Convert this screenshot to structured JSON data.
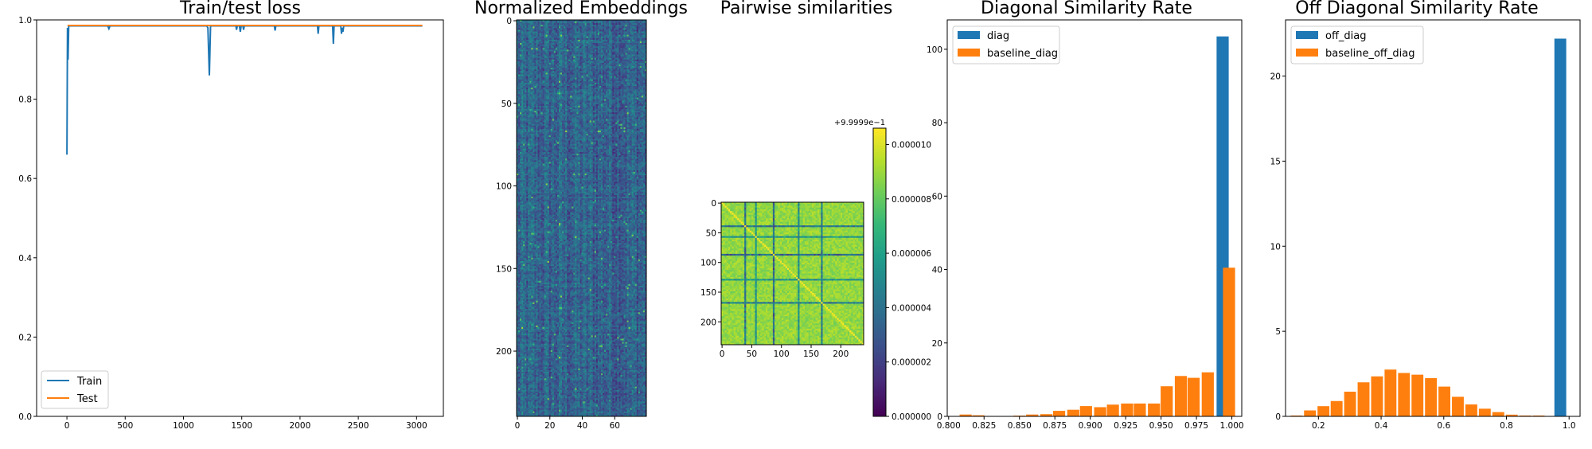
{
  "figure": {
    "titles": [
      "Train/test loss",
      "Normalized Embeddings",
      "Pairwise similarities",
      "Diagonal Similarity Rate",
      "Off Diagonal Similarity Rate"
    ],
    "colorbar_offset": "+9.9999e−1"
  },
  "colors": {
    "blue": "#1f77b4",
    "orange": "#ff7f0e"
  },
  "chart_data": [
    {
      "type": "line",
      "title": "Train/test loss",
      "xlim": [
        -260,
        3230
      ],
      "ylim": [
        0,
        1.0
      ],
      "xticks": [
        0,
        500,
        1000,
        1500,
        2000,
        2500,
        3000
      ],
      "yticks": [
        0.0,
        0.2,
        0.4,
        0.6,
        0.8,
        1.0
      ],
      "ytick_labels": [
        "0.0",
        "0.2",
        "0.4",
        "0.6",
        "0.8",
        "1.0"
      ],
      "legend": "lower-left",
      "series": [
        {
          "name": "Train",
          "color": "#1f77b4",
          "points": [
            [
              0,
              0.66
            ],
            [
              5,
              0.98
            ],
            [
              10,
              0.9
            ],
            [
              15,
              0.985
            ],
            [
              30,
              0.985
            ],
            [
              350,
              0.985
            ],
            [
              360,
              0.978
            ],
            [
              370,
              0.985
            ],
            [
              1200,
              0.985
            ],
            [
              1210,
              0.98
            ],
            [
              1222,
              0.86
            ],
            [
              1232,
              0.985
            ],
            [
              1450,
              0.985
            ],
            [
              1455,
              0.975
            ],
            [
              1462,
              0.985
            ],
            [
              1480,
              0.985
            ],
            [
              1488,
              0.97
            ],
            [
              1495,
              0.985
            ],
            [
              1510,
              0.985
            ],
            [
              1516,
              0.975
            ],
            [
              1522,
              0.985
            ],
            [
              1780,
              0.985
            ],
            [
              1786,
              0.973
            ],
            [
              1792,
              0.985
            ],
            [
              2150,
              0.985
            ],
            [
              2156,
              0.965
            ],
            [
              2162,
              0.985
            ],
            [
              2280,
              0.985
            ],
            [
              2286,
              0.94
            ],
            [
              2292,
              0.985
            ],
            [
              2350,
              0.985
            ],
            [
              2356,
              0.965
            ],
            [
              2362,
              0.98
            ],
            [
              2368,
              0.97
            ],
            [
              2375,
              0.985
            ],
            [
              3050,
              0.985
            ]
          ]
        },
        {
          "name": "Test",
          "color": "#ff7f0e",
          "points": [
            [
              5,
              0.986
            ],
            [
              3050,
              0.986
            ]
          ]
        }
      ]
    },
    {
      "type": "heatmap",
      "title": "Normalized Embeddings",
      "rows": 240,
      "cols": 80,
      "colormap": "viridis",
      "xticks": [
        0,
        20,
        40,
        60
      ],
      "yticks": [
        0,
        50,
        100,
        150,
        200
      ]
    },
    {
      "type": "heatmap",
      "title": "Pairwise similarities",
      "rows": 240,
      "cols": 240,
      "colormap": "viridis",
      "xticks": [
        0,
        50,
        100,
        150,
        200
      ],
      "yticks": [
        0,
        50,
        100,
        150,
        200
      ],
      "colorbar": {
        "offset": "+9.9999e−1",
        "ticks": [
          "0.000000",
          "0.000002",
          "0.000004",
          "0.000006",
          "0.000008",
          "0.000010"
        ],
        "range": [
          0,
          1.06e-05
        ]
      }
    },
    {
      "type": "bar",
      "title": "Diagonal Similarity Rate",
      "xlim": [
        0.799,
        1.007
      ],
      "ylim": [
        0,
        108
      ],
      "xticks": [
        0.8,
        0.825,
        0.85,
        0.875,
        0.9,
        0.925,
        0.95,
        0.975,
        1.0
      ],
      "xtick_labels": [
        "0.800",
        "0.825",
        "0.850",
        "0.875",
        "0.900",
        "0.925",
        "0.950",
        "0.975",
        "1.000"
      ],
      "yticks": [
        0,
        20,
        40,
        60,
        80,
        100
      ],
      "legend": "top-left",
      "bin_width": 0.0095,
      "series": [
        {
          "name": "diag",
          "color": "#1f77b4",
          "x": [
            0.9935
          ],
          "values": [
            103.5
          ]
        },
        {
          "name": "baseline_diag",
          "color": "#ff7f0e",
          "x": [
            0.812,
            0.821,
            0.831,
            0.84,
            0.85,
            0.859,
            0.869,
            0.878,
            0.888,
            0.897,
            0.907,
            0.916,
            0.926,
            0.935,
            0.945,
            0.954,
            0.964,
            0.973,
            0.983,
            0.998
          ],
          "values": [
            0.5,
            0.3,
            0.1,
            0.1,
            0.2,
            0.5,
            0.6,
            1.5,
            1.8,
            2.8,
            2.5,
            3.2,
            3.5,
            3.5,
            3.5,
            8.2,
            11,
            10.5,
            12,
            40.5
          ]
        }
      ]
    },
    {
      "type": "bar",
      "title": "Off Diagonal Similarity Rate",
      "xlim": [
        0.095,
        1.035
      ],
      "ylim": [
        0,
        23.3
      ],
      "xticks": [
        0.2,
        0.4,
        0.6,
        0.8,
        1.0
      ],
      "xtick_labels": [
        "0.2",
        "0.4",
        "0.6",
        "0.8",
        "1.0"
      ],
      "yticks": [
        0,
        5,
        10,
        15,
        20
      ],
      "legend": "top-left",
      "bin_width": 0.042,
      "series": [
        {
          "name": "off_diag",
          "color": "#1f77b4",
          "x": [
            0.972
          ],
          "values": [
            22.2
          ]
        },
        {
          "name": "baseline_off_diag",
          "color": "#ff7f0e",
          "x": [
            0.13,
            0.173,
            0.216,
            0.258,
            0.301,
            0.344,
            0.387,
            0.43,
            0.473,
            0.516,
            0.559,
            0.602,
            0.645,
            0.688,
            0.731,
            0.774,
            0.817,
            0.86,
            0.903
          ],
          "values": [
            0.05,
            0.35,
            0.6,
            0.9,
            1.45,
            2.0,
            2.35,
            2.75,
            2.55,
            2.45,
            2.25,
            1.75,
            1.15,
            0.7,
            0.45,
            0.25,
            0.1,
            0.05,
            0.05
          ]
        }
      ]
    }
  ]
}
